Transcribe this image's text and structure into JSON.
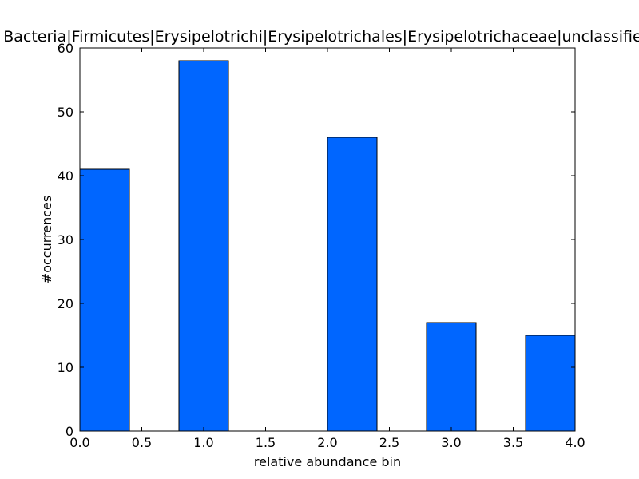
{
  "chart_data": {
    "type": "bar",
    "title": "Bacteria|Firmicutes|Erysipelotrichi|Erysipelotrichales|Erysipelotrichaceae|unclassified",
    "xlabel": "relative abundance bin",
    "ylabel": "#occurrences",
    "xlim": [
      0.0,
      4.0
    ],
    "ylim": [
      0,
      60
    ],
    "xticks": [
      "0.0",
      "0.5",
      "1.0",
      "1.5",
      "2.0",
      "2.5",
      "3.0",
      "3.5",
      "4.0"
    ],
    "yticks": [
      "0",
      "10",
      "20",
      "30",
      "40",
      "50",
      "60"
    ],
    "bar_width": 0.4,
    "bars": [
      {
        "x": 0.0,
        "value": 41
      },
      {
        "x": 0.8,
        "value": 58
      },
      {
        "x": 1.6,
        "value": 0
      },
      {
        "x": 2.0,
        "value": 46
      },
      {
        "x": 2.8,
        "value": 17
      },
      {
        "x": 3.6,
        "value": 15
      }
    ],
    "bar_color": "#0066ff",
    "edge_color": "#000000",
    "grid": false,
    "legend": "none"
  }
}
